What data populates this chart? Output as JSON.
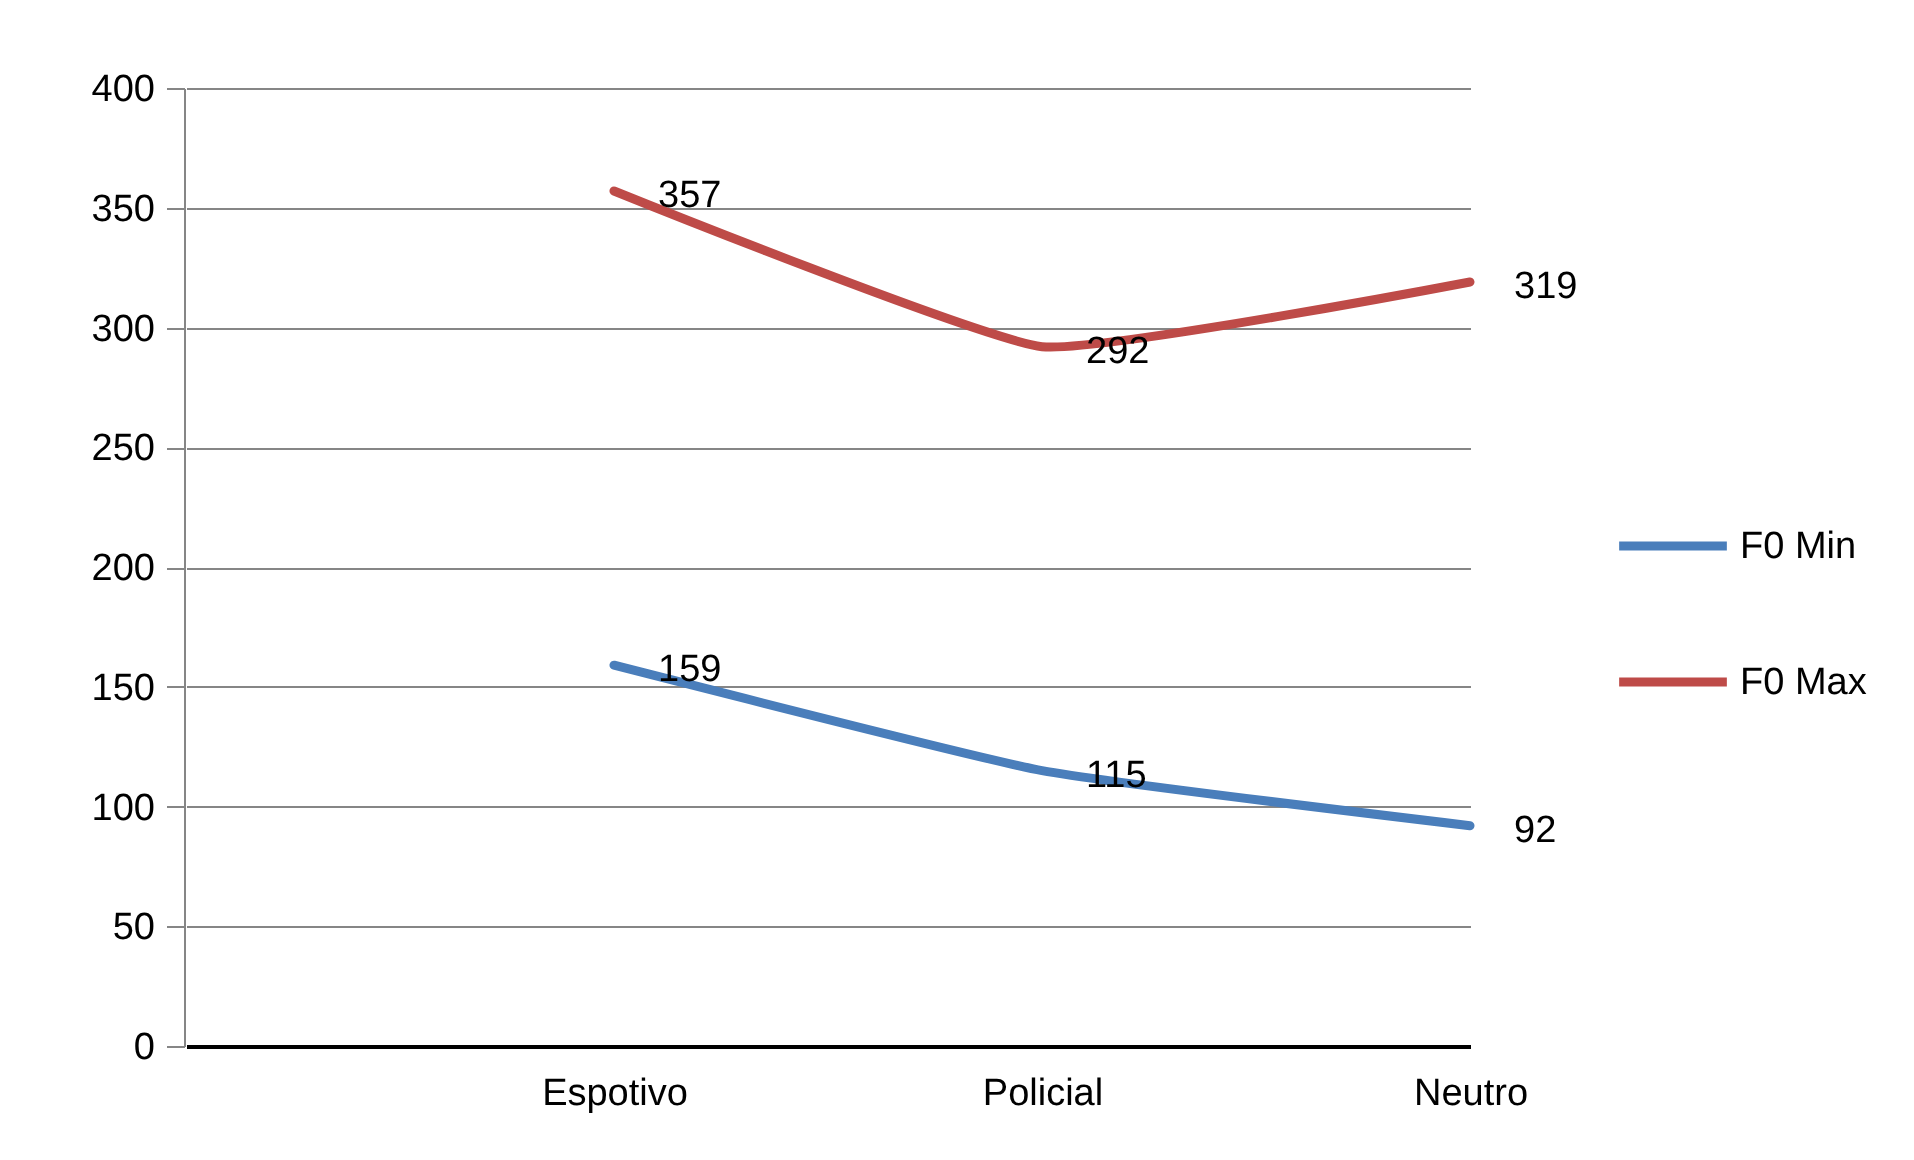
{
  "chart_data": {
    "type": "line",
    "categories": [
      null,
      "Espotivo",
      "Policial",
      "Neutro"
    ],
    "series": [
      {
        "name": "F0 Min",
        "color": "#4a7ebb",
        "values": [
          null,
          159,
          115,
          92
        ]
      },
      {
        "name": "F0 Max",
        "color": "#be4b48",
        "values": [
          null,
          357,
          292,
          319
        ]
      }
    ],
    "ylim": [
      0,
      400
    ],
    "yticks": [
      0,
      50,
      100,
      150,
      200,
      250,
      300,
      350,
      400
    ],
    "grid": "y",
    "legend": "right",
    "data_labels": true,
    "line_style": "solid"
  }
}
